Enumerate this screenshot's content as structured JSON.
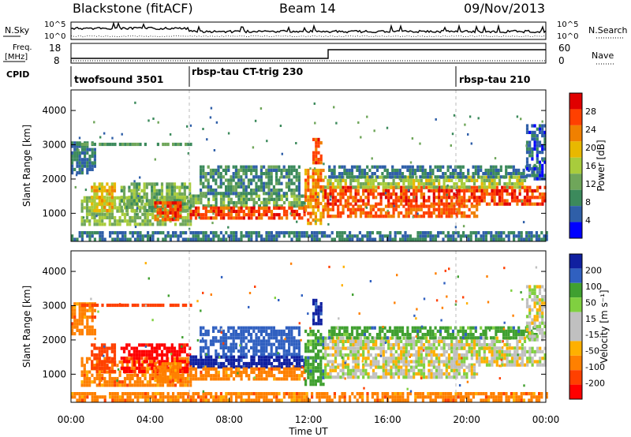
{
  "header": {
    "station": "Blackstone (fitACF)",
    "beam": "Beam 14",
    "date": "09/Nov/2013"
  },
  "top_panels": {
    "nsky_label": "N.Sky",
    "nsky_ticks": [
      "10^5",
      "10^0"
    ],
    "nsearch_label": "N.Search",
    "freq_label": "Freq.",
    "freq_unit": "[MHz]",
    "freq_ticks": [
      "18",
      "8"
    ],
    "nave_label": "Nave",
    "nave_ticks": [
      "60",
      "0"
    ],
    "cpid_label": "CPID",
    "modes": [
      {
        "name": "twofsound 3501",
        "start_h": 0.0
      },
      {
        "name": "rbsp-tau CT-trig 230",
        "start_h": 6.0
      },
      {
        "name": "rbsp-tau 210",
        "start_h": 19.5
      }
    ]
  },
  "chart_data": [
    {
      "type": "heatmap",
      "title": "",
      "quantity": "Power",
      "colorbar_label": "Power [dB]",
      "colorbar_ticks": [
        28,
        24,
        20,
        16,
        12,
        8,
        4
      ],
      "colorbar_range": [
        0,
        32
      ],
      "ylabel": "Slant Range [km]",
      "yticks": [
        1000,
        2000,
        3000,
        4000
      ],
      "ylim": [
        180,
        4600
      ],
      "xlabel": "Time UT",
      "xlim": [
        0,
        24
      ],
      "echo_regions": [
        {
          "t0": 0.0,
          "t1": 1.2,
          "r0": 2200,
          "r1": 3100,
          "value": 8
        },
        {
          "t0": 0.0,
          "t1": 6.0,
          "r0": 3000,
          "r1": 3060,
          "value": 12
        },
        {
          "t0": 0.5,
          "t1": 6.0,
          "r0": 700,
          "r1": 1500,
          "value": 16
        },
        {
          "t0": 1.0,
          "t1": 2.2,
          "r0": 1100,
          "r1": 1900,
          "value": 22
        },
        {
          "t0": 2.5,
          "t1": 6.0,
          "r0": 1100,
          "r1": 1900,
          "value": 14
        },
        {
          "t0": 4.2,
          "t1": 5.5,
          "r0": 850,
          "r1": 1350,
          "value": 30
        },
        {
          "t0": 6.0,
          "t1": 11.8,
          "r0": 1200,
          "r1": 1550,
          "value": 14
        },
        {
          "t0": 6.0,
          "t1": 11.8,
          "r0": 850,
          "r1": 1200,
          "value": 30
        },
        {
          "t0": 6.5,
          "t1": 11.5,
          "r0": 1550,
          "r1": 2400,
          "value": 10
        },
        {
          "t0": 11.8,
          "t1": 12.8,
          "r0": 700,
          "r1": 2300,
          "value": 26
        },
        {
          "t0": 12.2,
          "t1": 12.7,
          "r0": 2500,
          "r1": 3200,
          "value": 30
        },
        {
          "t0": 12.8,
          "t1": 24.0,
          "r0": 1250,
          "r1": 1800,
          "value": 30
        },
        {
          "t0": 12.8,
          "t1": 20.5,
          "r0": 950,
          "r1": 1250,
          "value": 28
        },
        {
          "t0": 12.8,
          "t1": 23.0,
          "r0": 1800,
          "r1": 2100,
          "value": 18
        },
        {
          "t0": 13.0,
          "t1": 23.5,
          "r0": 2100,
          "r1": 2400,
          "value": 8
        },
        {
          "t0": 0.0,
          "t1": 24.0,
          "r0": 200,
          "r1": 480,
          "value": 8
        },
        {
          "t0": 23.0,
          "t1": 24.0,
          "r0": 2000,
          "r1": 3600,
          "value": 6
        }
      ]
    },
    {
      "type": "heatmap",
      "title": "",
      "quantity": "Velocity",
      "colorbar_label": "Velocity [m s⁻¹]",
      "colorbar_ticks": [
        200,
        100,
        50,
        15,
        -15,
        -50,
        -100,
        -200
      ],
      "colorbar_range": [
        -250,
        250
      ],
      "ylabel": "Slant Range [km]",
      "yticks": [
        1000,
        2000,
        3000,
        4000
      ],
      "ylim": [
        180,
        4600
      ],
      "xlabel": "Time UT",
      "xlim": [
        0,
        24
      ],
      "xticks": [
        "00:00",
        "04:00",
        "08:00",
        "12:00",
        "16:00",
        "20:00",
        "00:00"
      ],
      "echo_regions": [
        {
          "t0": 0.0,
          "t1": 1.2,
          "r0": 2200,
          "r1": 3100,
          "value": -75
        },
        {
          "t0": 0.0,
          "t1": 6.0,
          "r0": 3000,
          "r1": 3060,
          "value": -150
        },
        {
          "t0": 0.5,
          "t1": 6.0,
          "r0": 700,
          "r1": 1500,
          "value": -75
        },
        {
          "t0": 1.0,
          "t1": 2.2,
          "r0": 1100,
          "r1": 1900,
          "value": -150
        },
        {
          "t0": 2.5,
          "t1": 6.0,
          "r0": 1100,
          "r1": 1900,
          "value": -225
        },
        {
          "t0": 4.2,
          "t1": 5.5,
          "r0": 850,
          "r1": 1350,
          "value": -75
        },
        {
          "t0": 6.0,
          "t1": 11.8,
          "r0": 1200,
          "r1": 1550,
          "value": 225
        },
        {
          "t0": 6.0,
          "t1": 11.8,
          "r0": 850,
          "r1": 1200,
          "value": -75
        },
        {
          "t0": 6.5,
          "t1": 11.5,
          "r0": 1550,
          "r1": 2400,
          "value": 150
        },
        {
          "t0": 11.8,
          "t1": 12.8,
          "r0": 700,
          "r1": 2300,
          "value": 75
        },
        {
          "t0": 12.2,
          "t1": 12.7,
          "r0": 2500,
          "r1": 3200,
          "value": 225
        },
        {
          "t0": 12.8,
          "t1": 24.0,
          "r0": 1250,
          "r1": 1800,
          "value": 0
        },
        {
          "t0": 12.8,
          "t1": 20.5,
          "r0": 950,
          "r1": 1250,
          "value": 0
        },
        {
          "t0": 12.8,
          "t1": 23.0,
          "r0": 1800,
          "r1": 2100,
          "value": 0
        },
        {
          "t0": 13.0,
          "t1": 23.5,
          "r0": 2100,
          "r1": 2400,
          "value": 75
        },
        {
          "t0": 0.0,
          "t1": 24.0,
          "r0": 200,
          "r1": 480,
          "value": -75
        },
        {
          "t0": 23.0,
          "t1": 24.0,
          "r0": 2000,
          "r1": 3600,
          "value": 0
        }
      ]
    }
  ],
  "colors": {
    "power_scale": [
      "#0000ff",
      "#2f5fa8",
      "#3c8a5c",
      "#6fa65a",
      "#a8cc3c",
      "#e8b800",
      "#f08000",
      "#ff4000",
      "#e00000"
    ],
    "velocity_scale": [
      "#ff0000",
      "#ff4000",
      "#ff8000",
      "#ffb000",
      "#c0c0c0",
      "#c0c0c0",
      "#80d040",
      "#40a030",
      "#3060c0",
      "#1020a0"
    ]
  }
}
